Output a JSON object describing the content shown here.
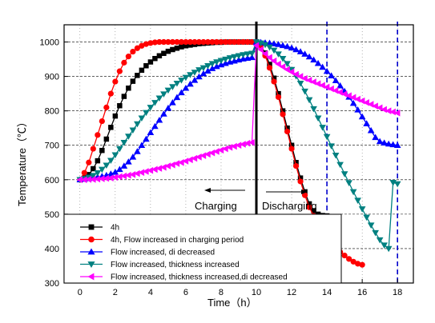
{
  "chart_data": {
    "type": "line",
    "xlabel": "Time（h）",
    "ylabel": "Temperature（℃）",
    "xlim": [
      -0.9,
      18.9
    ],
    "ylim": [
      300,
      1050
    ],
    "xticks": [
      0,
      2,
      4,
      6,
      8,
      10,
      12,
      14,
      16,
      18
    ],
    "yticks": [
      300,
      400,
      500,
      600,
      700,
      800,
      900,
      1000
    ],
    "grid": "horizontal-dashed",
    "legend_position": "bottom-left",
    "annotations": {
      "charging": "Charging",
      "discharging": "Discharging"
    },
    "vertical_lines": [
      {
        "x": 10,
        "style": "solid",
        "color": "#000000"
      },
      {
        "x": 14,
        "style": "dashed",
        "color": "#0000cc"
      },
      {
        "x": 18,
        "style": "dashed",
        "color": "#0000cc"
      }
    ],
    "series": [
      {
        "name": "4h",
        "color": "#000000",
        "marker": "square",
        "x": [
          0,
          0.25,
          0.5,
          0.75,
          1,
          1.25,
          1.5,
          1.75,
          2,
          2.25,
          2.5,
          2.75,
          3,
          3.25,
          3.5,
          3.75,
          4,
          4.25,
          4.5,
          4.75,
          5,
          5.25,
          5.5,
          5.75,
          6,
          6.25,
          6.5,
          6.75,
          7,
          7.25,
          7.5,
          7.75,
          8,
          8.25,
          8.5,
          8.75,
          9,
          9.25,
          9.5,
          9.75,
          10,
          10.25,
          10.5,
          10.75,
          11,
          11.25,
          11.5,
          11.75,
          12,
          12.25,
          12.5,
          12.75,
          13,
          13.25,
          13.5,
          13.75,
          14
        ],
        "y": [
          600,
          605,
          615,
          632,
          655,
          685,
          718,
          752,
          785,
          815,
          842,
          866,
          886,
          903,
          918,
          931,
          942,
          952,
          960,
          967,
          973,
          978,
          982,
          986,
          989,
          991,
          993,
          995,
          996,
          997,
          998,
          999,
          999,
          1000,
          1000,
          1000,
          1000,
          1000,
          1000,
          1000,
          1000,
          990,
          968,
          935,
          895,
          850,
          800,
          750,
          700,
          650,
          605,
          565,
          530,
          510,
          500,
          496,
          495
        ]
      },
      {
        "name": "4h, Flow increased in charging period",
        "color": "#ff0000",
        "marker": "circle",
        "x": [
          0,
          0.25,
          0.5,
          0.75,
          1,
          1.25,
          1.5,
          1.75,
          2,
          2.25,
          2.5,
          2.75,
          3,
          3.25,
          3.5,
          3.75,
          4,
          4.25,
          4.5,
          4.75,
          5,
          5.25,
          5.5,
          5.75,
          6,
          6.25,
          6.5,
          6.75,
          7,
          7.25,
          7.5,
          7.75,
          8,
          8.25,
          8.5,
          8.75,
          9,
          9.25,
          9.5,
          9.75,
          10,
          10.25,
          10.5,
          10.75,
          11,
          11.25,
          11.5,
          11.75,
          12,
          12.25,
          12.5,
          12.75,
          13,
          13.25,
          13.5,
          13.75,
          14,
          14.25,
          14.5,
          14.75,
          15,
          15.25,
          15.5,
          15.75,
          16
        ],
        "y": [
          600,
          620,
          650,
          690,
          730,
          770,
          810,
          850,
          885,
          915,
          940,
          958,
          972,
          982,
          989,
          994,
          997,
          999,
          1000,
          1000,
          1000,
          1000,
          1000,
          1000,
          1000,
          1000,
          1000,
          1000,
          1000,
          1000,
          1000,
          1000,
          1000,
          1000,
          1000,
          1000,
          1000,
          1000,
          1000,
          1000,
          1000,
          985,
          960,
          925,
          885,
          840,
          790,
          740,
          690,
          640,
          595,
          555,
          520,
          495,
          470,
          450,
          435,
          420,
          405,
          390,
          380,
          370,
          362,
          356,
          353
        ]
      },
      {
        "name": "Flow increased, di decreased",
        "color": "#0000ff",
        "marker": "triangle-up",
        "x": [
          0,
          0.25,
          0.5,
          0.75,
          1,
          1.25,
          1.5,
          1.75,
          2,
          2.25,
          2.5,
          2.75,
          3,
          3.25,
          3.5,
          3.75,
          4,
          4.25,
          4.5,
          4.75,
          5,
          5.25,
          5.5,
          5.75,
          6,
          6.25,
          6.5,
          6.75,
          7,
          7.25,
          7.5,
          7.75,
          8,
          8.25,
          8.5,
          8.75,
          9,
          9.25,
          9.5,
          9.75,
          10,
          10.25,
          10.5,
          10.75,
          11,
          11.25,
          11.5,
          11.75,
          12,
          12.25,
          12.5,
          12.75,
          13,
          13.25,
          13.5,
          13.75,
          14,
          14.25,
          14.5,
          14.75,
          15,
          15.25,
          15.5,
          15.75,
          16,
          16.25,
          16.5,
          16.75,
          17,
          17.25,
          17.5,
          17.75,
          18
        ],
        "y": [
          600,
          602,
          604,
          606,
          608,
          610,
          613,
          617,
          622,
          630,
          640,
          652,
          666,
          682,
          700,
          718,
          737,
          755,
          773,
          791,
          808,
          824,
          839,
          853,
          866,
          878,
          889,
          899,
          908,
          916,
          923,
          929,
          934,
          938,
          942,
          945,
          948,
          951,
          953,
          955,
          1000,
          999,
          998,
          997,
          995,
          993,
          990,
          987,
          983,
          978,
          972,
          965,
          957,
          948,
          938,
          927,
          915,
          902,
          888,
          873,
          857,
          840,
          822,
          803,
          783,
          763,
          743,
          723,
          711,
          707,
          704,
          702,
          700
        ]
      },
      {
        "name": "Flow increased, thickness increased",
        "color": "#008080",
        "marker": "triangle-down",
        "x": [
          0,
          0.25,
          0.5,
          0.75,
          1,
          1.25,
          1.5,
          1.75,
          2,
          2.25,
          2.5,
          2.75,
          3,
          3.25,
          3.5,
          3.75,
          4,
          4.25,
          4.5,
          4.75,
          5,
          5.25,
          5.5,
          5.75,
          6,
          6.25,
          6.5,
          6.75,
          7,
          7.25,
          7.5,
          7.75,
          8,
          8.25,
          8.5,
          8.75,
          9,
          9.25,
          9.5,
          9.75,
          10,
          10.25,
          10.5,
          10.75,
          11,
          11.25,
          11.5,
          11.75,
          12,
          12.25,
          12.5,
          12.75,
          13,
          13.25,
          13.5,
          13.75,
          14,
          14.25,
          14.5,
          14.75,
          15,
          15.25,
          15.5,
          15.75,
          16,
          16.25,
          16.5,
          16.75,
          17,
          17.25,
          17.5,
          17.75,
          18
        ],
        "y": [
          600,
          603,
          607,
          612,
          620,
          630,
          642,
          656,
          672,
          690,
          708,
          726,
          744,
          762,
          779,
          795,
          810,
          824,
          837,
          849,
          860,
          870,
          880,
          889,
          897,
          905,
          912,
          919,
          925,
          931,
          937,
          942,
          946,
          950,
          954,
          957,
          960,
          963,
          965,
          967,
          1000,
          997,
          992,
          985,
          976,
          965,
          952,
          937,
          920,
          901,
          880,
          857,
          832,
          806,
          779,
          752,
          725,
          698,
          671,
          644,
          617,
          591,
          565,
          540,
          515,
          491,
          468,
          446,
          425,
          410,
          400,
          592,
          588
        ]
      },
      {
        "name": "Flow increased, thickness increased,di decreased",
        "color": "#ff00ff",
        "marker": "triangle-left",
        "x": [
          0,
          0.25,
          0.5,
          0.75,
          1,
          1.25,
          1.5,
          1.75,
          2,
          2.25,
          2.5,
          2.75,
          3,
          3.25,
          3.5,
          3.75,
          4,
          4.25,
          4.5,
          4.75,
          5,
          5.25,
          5.5,
          5.75,
          6,
          6.25,
          6.5,
          6.75,
          7,
          7.25,
          7.5,
          7.75,
          8,
          8.25,
          8.5,
          8.75,
          9,
          9.25,
          9.5,
          9.75,
          10,
          10.25,
          10.5,
          10.75,
          11,
          11.25,
          11.5,
          11.75,
          12,
          12.25,
          12.5,
          12.75,
          13,
          13.25,
          13.5,
          13.75,
          14,
          14.25,
          14.5,
          14.75,
          15,
          15.25,
          15.5,
          15.75,
          16,
          16.25,
          16.5,
          16.75,
          17,
          17.25,
          17.5,
          17.75,
          18
        ],
        "y": [
          600,
          600,
          601,
          601,
          602,
          603,
          604,
          605,
          607,
          609,
          611,
          613,
          615,
          618,
          621,
          624,
          627,
          630,
          633,
          636,
          640,
          643,
          647,
          650,
          654,
          658,
          662,
          666,
          670,
          674,
          678,
          682,
          686,
          690,
          694,
          697,
          700,
          703,
          706,
          708,
          990,
          978,
          966,
          955,
          945,
          936,
          928,
          920,
          913,
          906,
          900,
          894,
          889,
          884,
          879,
          874,
          869,
          864,
          859,
          854,
          849,
          844,
          839,
          834,
          829,
          824,
          819,
          814,
          809,
          804,
          800,
          797,
          794
        ]
      }
    ]
  }
}
